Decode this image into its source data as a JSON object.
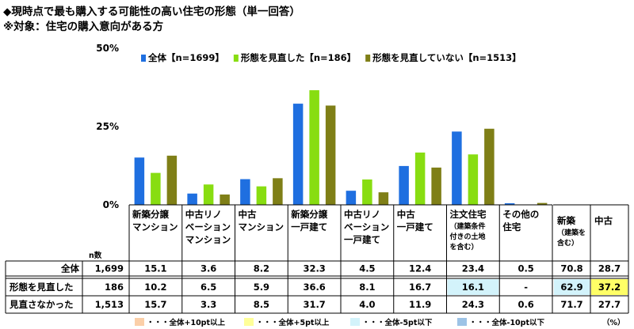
{
  "title": "◆現時点で最も購入する可能性の高い住宅の形態（単一回答）",
  "subtitle": "※対象：住宅の購入意向がある方",
  "chart_data": {
    "type": "bar",
    "yticks": [
      "50%",
      "25%",
      "0%"
    ],
    "ylim": [
      0,
      50
    ],
    "grid": false,
    "legend_position": "top",
    "categories": [
      {
        "lines": [
          "新築分譲",
          "マンション"
        ]
      },
      {
        "lines": [
          "中古リノ",
          "ベーション",
          "マンション"
        ]
      },
      {
        "lines": [
          "中古",
          "マンション"
        ]
      },
      {
        "lines": [
          "新築分譲",
          "一戸建て"
        ]
      },
      {
        "lines": [
          "中古リノ",
          "ベーション",
          "一戸建て"
        ]
      },
      {
        "lines": [
          "中古",
          "一戸建て"
        ]
      },
      {
        "lines": [
          "注文住宅"
        ],
        "small": [
          "（建築条件",
          "付きの土地",
          "を含む）"
        ]
      },
      {
        "lines": [
          "その他の",
          "住宅"
        ]
      }
    ],
    "series": [
      {
        "name": "全体【n=1699】",
        "color": "#1f6fe0",
        "values": [
          15.1,
          3.6,
          8.2,
          32.3,
          4.5,
          12.4,
          23.4,
          0.5
        ]
      },
      {
        "name": "形態を見直した【n=186】",
        "color": "#88dd11",
        "values": [
          10.2,
          6.5,
          5.9,
          36.6,
          8.1,
          16.7,
          16.1,
          0.0
        ]
      },
      {
        "name": "形態を見直していない【n=1513】",
        "color": "#7f7f17",
        "values": [
          15.7,
          3.3,
          8.5,
          31.7,
          4.0,
          11.9,
          24.3,
          0.6
        ]
      }
    ]
  },
  "summary_headers": [
    {
      "lines": [
        "新築"
      ],
      "small": [
        "（建築を",
        "含む）"
      ]
    },
    {
      "lines": [
        "中古"
      ]
    }
  ],
  "table": {
    "n_label": "n数",
    "rows": [
      {
        "label": "全体",
        "n": "1,699",
        "cells": [
          "15.1",
          "3.6",
          "8.2",
          "32.3",
          "4.5",
          "12.4",
          "23.4",
          "0.5"
        ],
        "summary": [
          "70.8",
          "28.7"
        ]
      },
      {
        "label": "形態を見直した",
        "n": "186",
        "cells": [
          "10.2",
          "6.5",
          "5.9",
          "36.6",
          "8.1",
          "16.7",
          "16.1",
          "-"
        ],
        "summary": [
          "62.9",
          "37.2"
        ]
      },
      {
        "label": "見直さなかった",
        "n": "1,513",
        "cells": [
          "15.7",
          "3.3",
          "8.5",
          "31.7",
          "4.0",
          "11.9",
          "24.3",
          "0.6"
        ],
        "summary": [
          "71.7",
          "27.7"
        ]
      }
    ],
    "highlights": [
      {
        "row": 1,
        "col": 6,
        "color": "#d3f3fb"
      },
      {
        "row": 1,
        "summary": 0,
        "color": "#d3f3fb"
      },
      {
        "row": 1,
        "summary": 1,
        "color": "#ffff66"
      }
    ]
  },
  "bottom_legend": [
    {
      "label": "・・・全体+10pt以上",
      "color": "#fbcfa8"
    },
    {
      "label": "・・・全体+5pt以上",
      "color": "#ffff99"
    },
    {
      "label": "・・・全体-5pt以下",
      "color": "#d3f3fb"
    },
    {
      "label": "・・・全体-10pt以下",
      "color": "#9dc3e6"
    }
  ],
  "unit_label": "（%）"
}
